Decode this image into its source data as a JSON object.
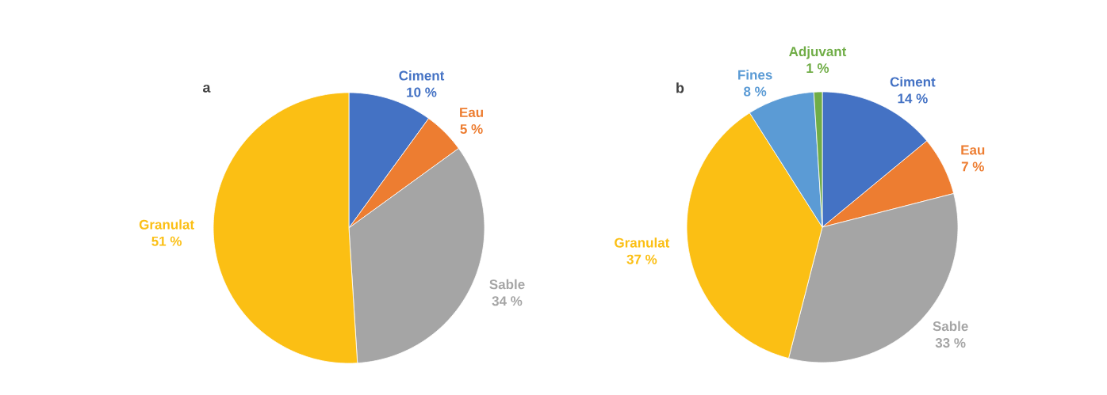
{
  "chart_data": [
    {
      "type": "pie",
      "title": "a",
      "categories": [
        "Ciment",
        "Eau",
        "Sable",
        "Granulat"
      ],
      "values": [
        10,
        5,
        34,
        51
      ],
      "colors": [
        "#4472c4",
        "#ed7d31",
        "#a5a5a5",
        "#fbbf14"
      ],
      "value_labels": [
        "10 %",
        "5 %",
        "34 %",
        "51 %"
      ]
    },
    {
      "type": "pie",
      "title": "b",
      "categories": [
        "Ciment",
        "Eau",
        "Sable",
        "Granulat",
        "Fines",
        "Adjuvant"
      ],
      "values": [
        14,
        7,
        33,
        37,
        8,
        1
      ],
      "colors": [
        "#4472c4",
        "#ed7d31",
        "#a5a5a5",
        "#fbbf14",
        "#5b9bd5",
        "#70ad47"
      ],
      "value_labels": [
        "14 %",
        "7 %",
        "33 %",
        "37 %",
        "8 %",
        "1 %"
      ]
    }
  ]
}
